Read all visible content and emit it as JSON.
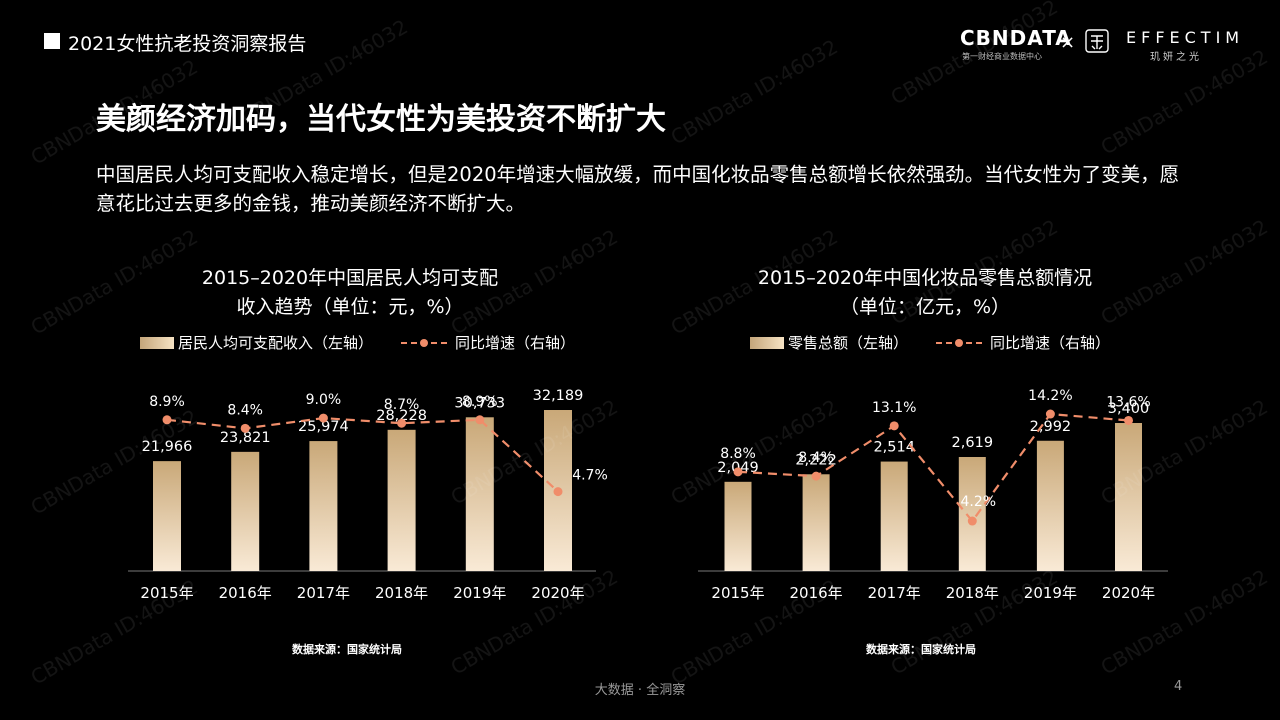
{
  "header": {
    "title": "2021女性抗老投资洞察报告"
  },
  "brand": {
    "cbn": "CBNDATA",
    "cbn_sub": "第一财经商业数据中心",
    "times": "×",
    "eff": "EFFECTIM",
    "eff_sub": "玑妍之光"
  },
  "headline": "美颜经济加码，当代女性为美投资不断扩大",
  "intro": "中国居民人均可支配收入稳定增长，但是2020年增速大幅放缓，而中国化妆品零售总额增长依然强劲。当代女性为了变美，愿意花比过去更多的金钱，推动美颜经济不断扩大。",
  "watermark": "CBNData ID:46032",
  "footer": "大数据 · 全洞察",
  "page_number": "4",
  "chart_data": [
    {
      "type": "bar",
      "title_line1": "2015–2020年中国居民人均可支配",
      "title_line2": "收入趋势（单位：元，%）",
      "legend_bar": "居民人均可支配收入（左轴）",
      "legend_line": "同比增速（右轴）",
      "categories": [
        "2015年",
        "2016年",
        "2017年",
        "2018年",
        "2019年",
        "2020年"
      ],
      "values": [
        21966,
        23821,
        25974,
        28228,
        30733,
        32189
      ],
      "value_labels": [
        "21,966",
        "23,821",
        "25,974",
        "28,228",
        "30,733",
        "32,189"
      ],
      "growth": [
        8.9,
        8.4,
        9.0,
        8.7,
        8.9,
        4.7
      ],
      "growth_labels": [
        "8.9%",
        "8.4%",
        "9.0%",
        "8.7%",
        "8.9%",
        "4.7%"
      ],
      "source": "数据来源：国家统计局"
    },
    {
      "type": "bar",
      "title_line1": "2015–2020年中国化妆品零售总额情况",
      "title_line2": "（单位：亿元，%）",
      "legend_bar": "零售总额（左轴）",
      "legend_line": "同比增速（右轴）",
      "categories": [
        "2015年",
        "2016年",
        "2017年",
        "2018年",
        "2019年",
        "2020年"
      ],
      "values": [
        2049,
        2222,
        2514,
        2619,
        2992,
        3400
      ],
      "value_labels": [
        "2,049",
        "2,222",
        "2,514",
        "2,619",
        "2,992",
        "3,400"
      ],
      "growth": [
        8.8,
        8.4,
        13.1,
        4.2,
        14.2,
        13.6
      ],
      "growth_labels": [
        "8.8%",
        "8.4%",
        "13.1%",
        "4.2%",
        "14.2%",
        "13.6%"
      ],
      "source": "数据来源：国家统计局"
    }
  ],
  "colors": {
    "line": "#f08d6a",
    "bar_top": "#c9a878",
    "bar_bottom": "#f9ead6"
  }
}
